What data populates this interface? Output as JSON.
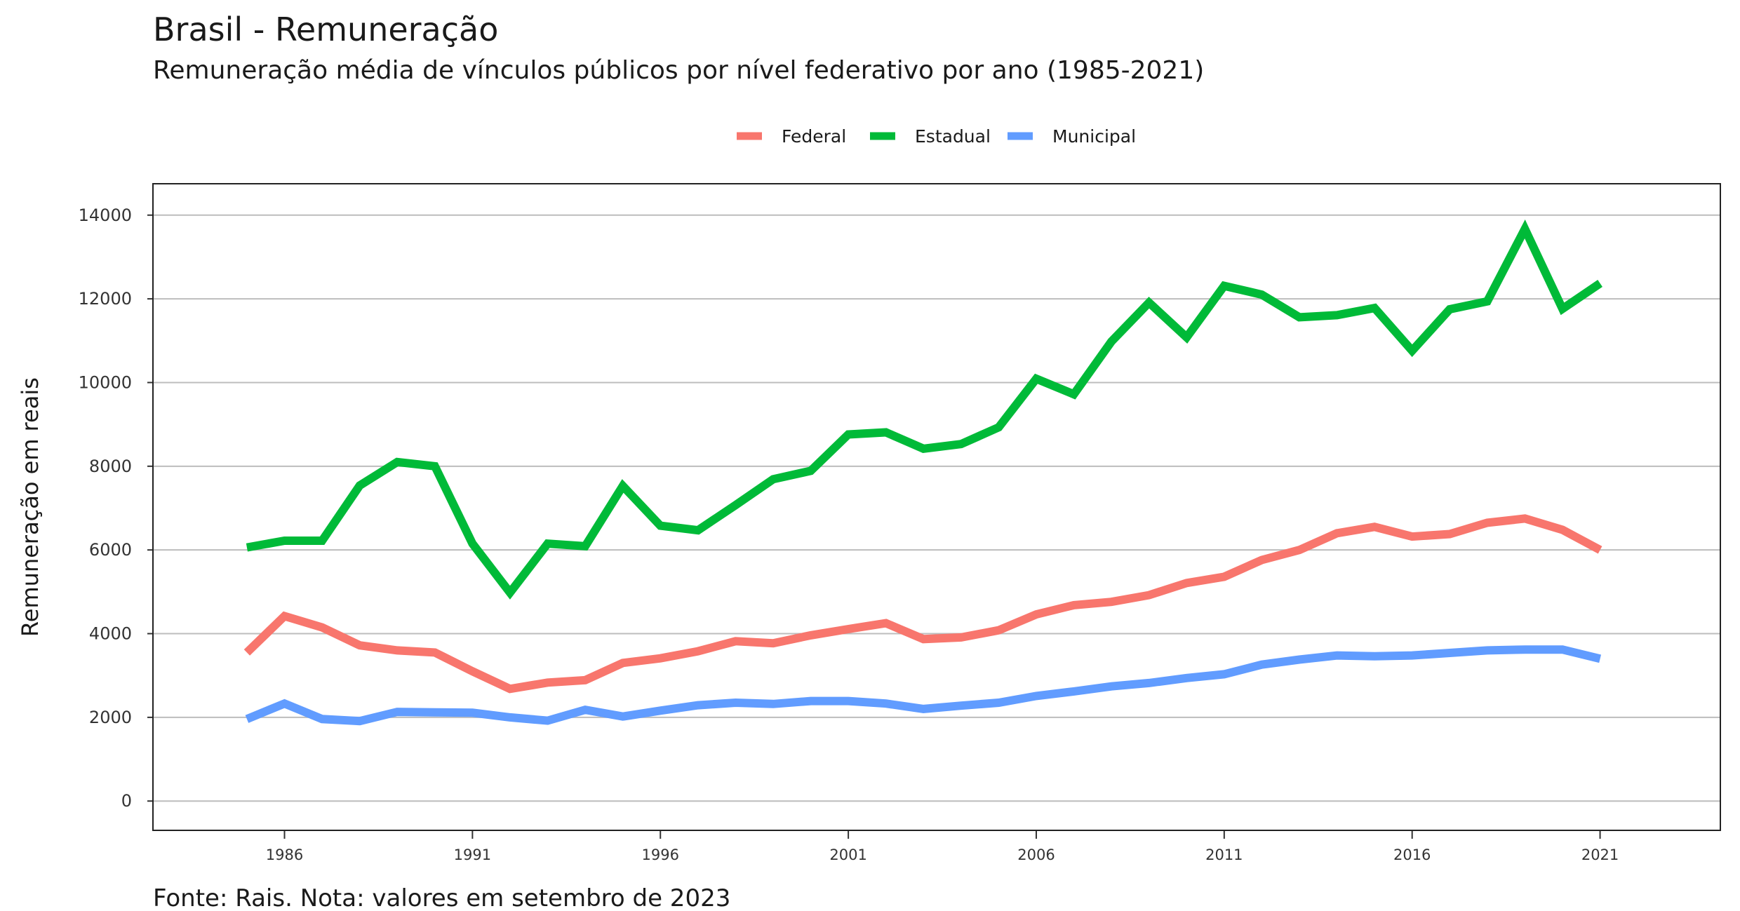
{
  "header": {
    "title": "Brasil - Remuneração",
    "subtitle": "Remuneração média de vínculos públicos por nível federativo por ano (1985-2021)"
  },
  "caption": "Fonte: Rais. Nota: valores em setembro de 2023",
  "chart_data": {
    "type": "line",
    "ylabel": "Remuneração em reais",
    "xlabel": "",
    "xlim": [
      1982.5,
      2024.2
    ],
    "ylim": [
      -700,
      14750
    ],
    "x_ticks": [
      1986,
      1991,
      1996,
      2001,
      2006,
      2011,
      2016,
      2021
    ],
    "y_ticks": [
      0,
      2000,
      4000,
      6000,
      8000,
      10000,
      12000,
      14000
    ],
    "grid": "horizontal",
    "legend_position": "top",
    "x": [
      1985,
      1986,
      1987,
      1988,
      1989,
      1990,
      1991,
      1992,
      1993,
      1994,
      1995,
      1996,
      1997,
      1998,
      1999,
      2000,
      2001,
      2002,
      2003,
      2004,
      2005,
      2006,
      2007,
      2008,
      2009,
      2010,
      2011,
      2012,
      2013,
      2014,
      2015,
      2016,
      2017,
      2018,
      2019,
      2020,
      2021
    ],
    "series": [
      {
        "name": "Federal",
        "color": "#F8766D",
        "values": [
          3550,
          4420,
          4150,
          3720,
          3600,
          3550,
          3100,
          2680,
          2830,
          2890,
          3300,
          3410,
          3580,
          3820,
          3770,
          3960,
          4110,
          4250,
          3870,
          3910,
          4080,
          4460,
          4680,
          4760,
          4920,
          5210,
          5360,
          5760,
          6000,
          6400,
          6550,
          6320,
          6380,
          6650,
          6750,
          6480,
          6000
        ]
      },
      {
        "name": "Estadual",
        "color": "#00BA38",
        "values": [
          6060,
          6220,
          6220,
          7540,
          8100,
          8000,
          6150,
          4980,
          6150,
          6090,
          7530,
          6580,
          6470,
          7070,
          7690,
          7890,
          8760,
          8810,
          8420,
          8530,
          8930,
          10090,
          9720,
          10980,
          11910,
          11080,
          12310,
          12100,
          11560,
          11610,
          11780,
          10760,
          11750,
          11940,
          13670,
          11760,
          12370
        ]
      },
      {
        "name": "Municipal",
        "color": "#619CFF",
        "values": [
          1960,
          2330,
          1960,
          1910,
          2130,
          2120,
          2110,
          2000,
          1920,
          2180,
          2020,
          2160,
          2290,
          2350,
          2320,
          2390,
          2390,
          2330,
          2200,
          2280,
          2350,
          2510,
          2620,
          2740,
          2820,
          2940,
          3030,
          3260,
          3380,
          3480,
          3460,
          3480,
          3540,
          3600,
          3620,
          3620,
          3400
        ]
      }
    ]
  }
}
